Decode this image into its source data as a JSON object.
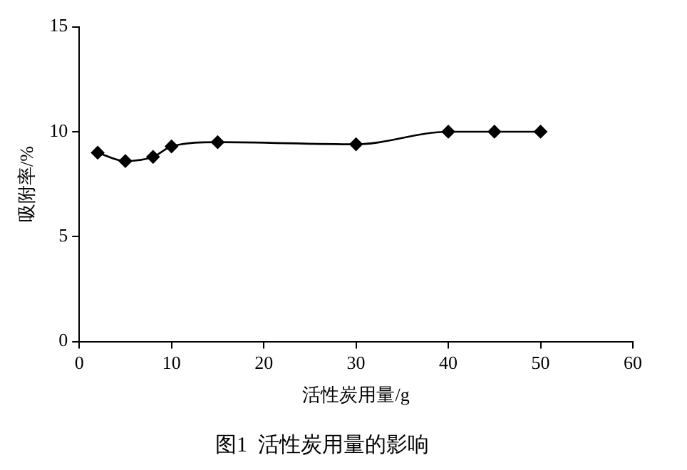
{
  "chart_data": {
    "type": "line",
    "title": "图1  活性炭用量的影响",
    "xlabel": "活性炭用量/g",
    "ylabel": "吸附率/%",
    "x": [
      2,
      5,
      8,
      10,
      15,
      30,
      40,
      45,
      50
    ],
    "series": [
      {
        "color": "#000000",
        "values": [
          9.0,
          8.6,
          8.8,
          9.3,
          9.5,
          9.4,
          10.0,
          10.0,
          10.0
        ]
      }
    ],
    "xlim": [
      0,
      60
    ],
    "xticks": [
      0,
      10,
      20,
      30,
      40,
      50,
      60
    ],
    "ylim": [
      0,
      15
    ],
    "yticks": [
      0,
      5,
      10,
      15
    ],
    "grid": false,
    "legend": false,
    "marker": "diamond",
    "line_style": "solid"
  }
}
